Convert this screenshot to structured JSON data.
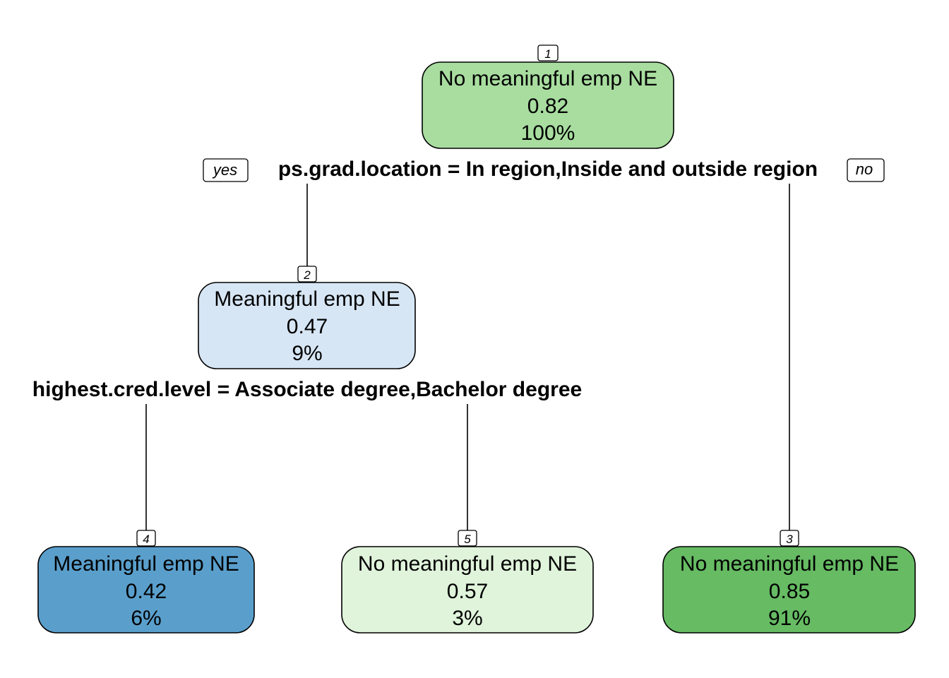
{
  "tree": {
    "root": {
      "id": "1",
      "class_label": "No meaningful emp NE",
      "prob": "0.82",
      "pct": "100%",
      "fill": "#a8dd9f"
    },
    "root_split": {
      "condition": "ps.grad.location = In region,Inside and outside region",
      "yes_label": "yes",
      "no_label": "no"
    },
    "node2": {
      "id": "2",
      "class_label": "Meaningful emp NE",
      "prob": "0.47",
      "pct": "9%",
      "fill": "#d7e6f5"
    },
    "node2_split": {
      "condition": "highest.cred.level = Associate degree,Bachelor degree"
    },
    "node4": {
      "id": "4",
      "class_label": "Meaningful emp NE",
      "prob": "0.42",
      "pct": "6%",
      "fill": "#5a9fcc"
    },
    "node5": {
      "id": "5",
      "class_label": "No meaningful emp NE",
      "prob": "0.57",
      "pct": "3%",
      "fill": "#e0f3db"
    },
    "node3": {
      "id": "3",
      "class_label": "No meaningful emp NE",
      "prob": "0.85",
      "pct": "91%",
      "fill": "#66bb63"
    }
  }
}
